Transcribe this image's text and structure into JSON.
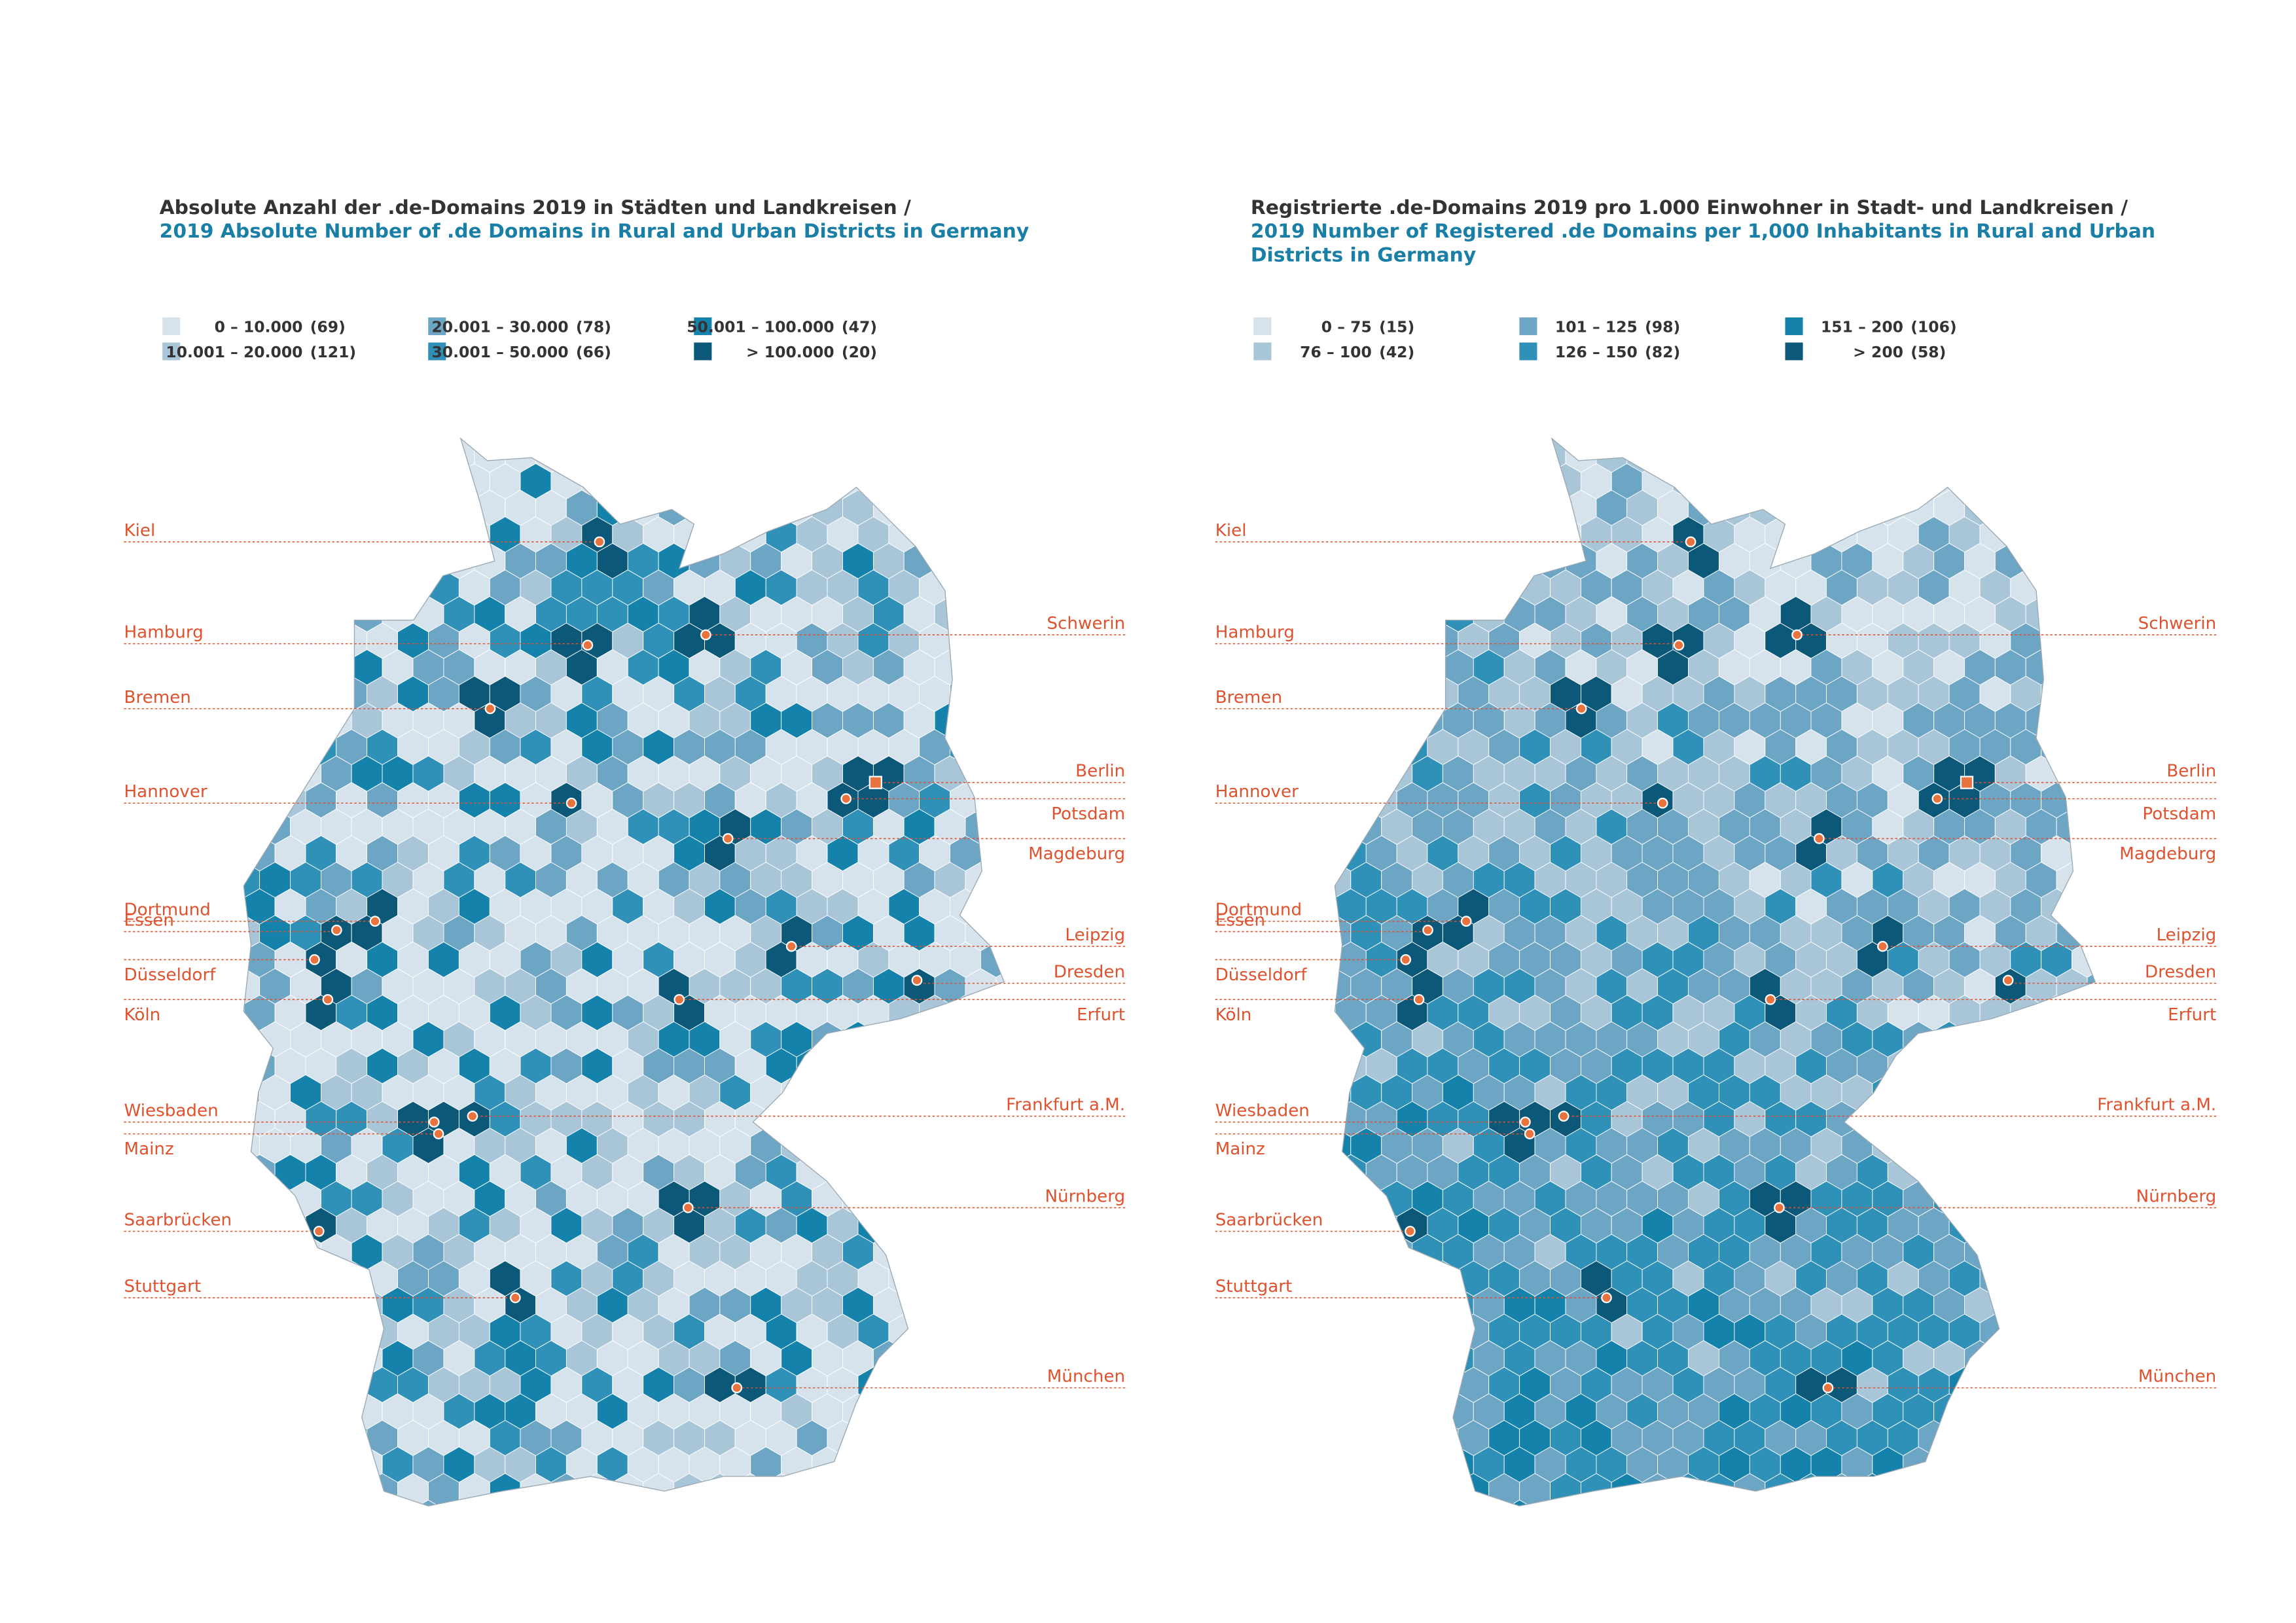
{
  "maps": [
    {
      "title": "Absolute Anzahl der .de-Domains 2019 in Städten und Landkreisen /",
      "subtitle": [
        "2019 Absolute Number of .de Domains in Rural and Urban Districts in Germany"
      ],
      "legend": [
        {
          "range": "0  –  10.000",
          "count": "(69)",
          "color": "#d6e3ec"
        },
        {
          "range": "10.001  –  20.000",
          "count": "(121)",
          "color": "#a9c5d8"
        },
        {
          "range": "20.001  –  30.000",
          "count": "(78)",
          "color": "#6da5c4"
        },
        {
          "range": "30.001  –  50.000",
          "count": "(66)",
          "color": "#2f90b8"
        },
        {
          "range": "50.001  –  100.000",
          "count": "(47)",
          "color": "#1482aa"
        },
        {
          "range": ">  100.000",
          "count": "(20)",
          "color": "#0b5878"
        }
      ]
    },
    {
      "title": "Registrierte .de-Domains 2019 pro 1.000 Einwohner in Stadt- und Landkreisen /",
      "subtitle": [
        "2019 Number of Registered .de Domains per 1,000 Inhabitants in Rural and Urban",
        "Districts in Germany"
      ],
      "legend": [
        {
          "range": "0  –  75",
          "count": "(15)",
          "color": "#d6e3ec"
        },
        {
          "range": "76  –  100",
          "count": "(42)",
          "color": "#a9c5d8"
        },
        {
          "range": "101  –  125",
          "count": "(98)",
          "color": "#6da5c4"
        },
        {
          "range": "126  –  150",
          "count": "(82)",
          "color": "#2f90b8"
        },
        {
          "range": "151  –  200",
          "count": "(106)",
          "color": "#1482aa"
        },
        {
          "range": ">  200",
          "count": "(58)",
          "color": "#0b5878"
        }
      ]
    }
  ],
  "cities": {
    "left": [
      "Kiel",
      "Hamburg",
      "Bremen",
      "Hannover",
      "Dortmund",
      "Essen",
      "Düsseldorf",
      "Köln",
      "Wiesbaden",
      "Mainz",
      "Saarbrücken",
      "Stuttgart"
    ],
    "right": [
      "Schwerin",
      "Berlin",
      "Potsdam",
      "Magdeburg",
      "Leipzig",
      "Dresden",
      "Erfurt",
      "Frankfurt a.M.",
      "Nürnberg",
      "München"
    ]
  }
}
